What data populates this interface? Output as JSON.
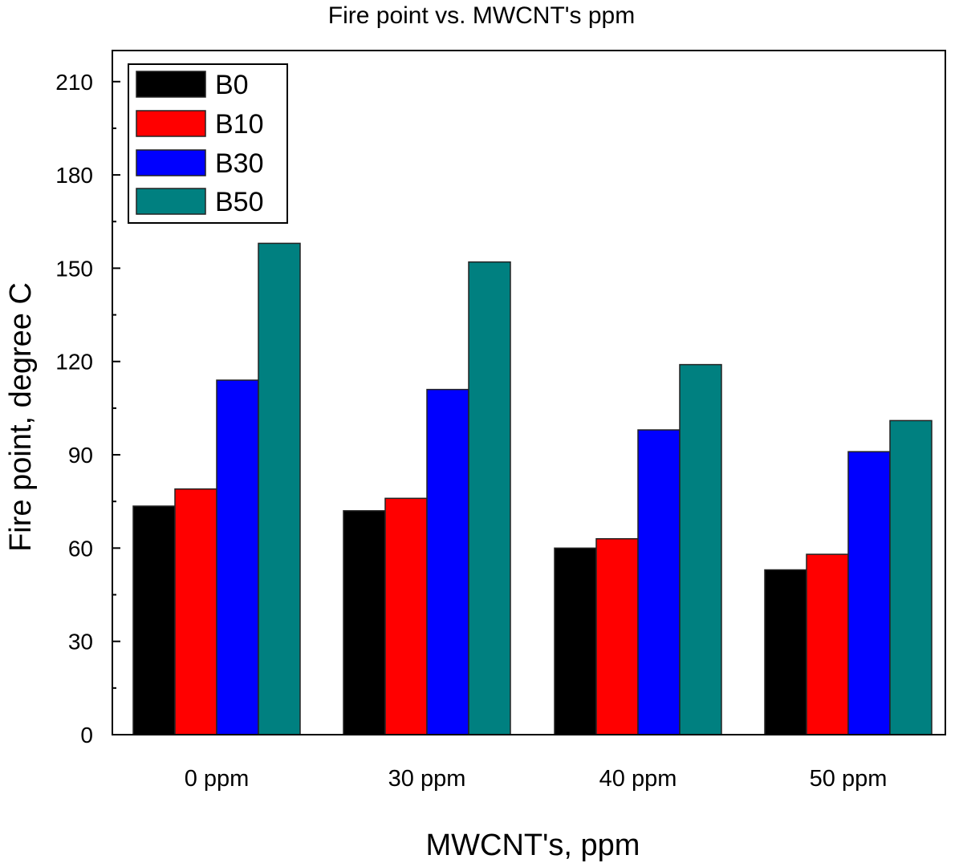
{
  "chart_data": {
    "type": "bar",
    "title": "Fire point vs. MWCNT's ppm",
    "xlabel": "MWCNT's, ppm",
    "ylabel": "Fire point, degree C",
    "categories": [
      "0 ppm",
      "30 ppm",
      "40 ppm",
      "50 ppm"
    ],
    "series": [
      {
        "name": "B0",
        "color": "#000000",
        "values": [
          73.5,
          72,
          60,
          53
        ]
      },
      {
        "name": "B10",
        "color": "#ff0000",
        "values": [
          79,
          76,
          63,
          58
        ]
      },
      {
        "name": "B30",
        "color": "#0000ff",
        "values": [
          114,
          111,
          98,
          91
        ]
      },
      {
        "name": "B50",
        "color": "#008080",
        "values": [
          158,
          152,
          119,
          101
        ]
      }
    ],
    "ylim": [
      0,
      220
    ],
    "yticks": [
      0,
      30,
      60,
      90,
      120,
      150,
      180,
      210
    ],
    "grid": false,
    "legend_position": "top-left"
  }
}
